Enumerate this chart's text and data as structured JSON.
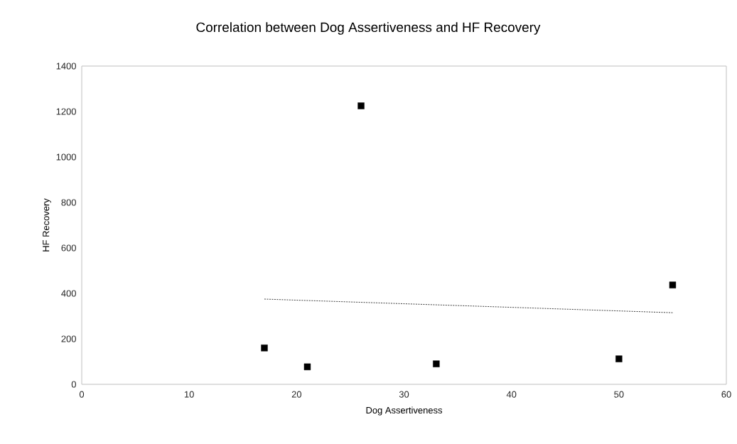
{
  "chart_data": {
    "type": "scatter",
    "title": "Correlation between Dog Assertiveness and HF Recovery",
    "xlabel": "Dog Assertiveness",
    "ylabel": "HF Recovery",
    "xlim": [
      0,
      60
    ],
    "ylim": [
      0,
      1400
    ],
    "xticks": [
      0,
      10,
      20,
      30,
      40,
      50,
      60
    ],
    "yticks": [
      0,
      200,
      400,
      600,
      800,
      1000,
      1200,
      1400
    ],
    "series": [
      {
        "color": "#000000",
        "marker": "square",
        "x": [
          17,
          21,
          26,
          33,
          50,
          55
        ],
        "values": [
          160,
          77,
          1225,
          90,
          112,
          437
        ]
      },
      {
        "type": "line",
        "color": "#404040",
        "line_style": "dotted",
        "marker": "none",
        "x": [
          17,
          55
        ],
        "values": [
          375,
          315
        ]
      }
    ]
  }
}
